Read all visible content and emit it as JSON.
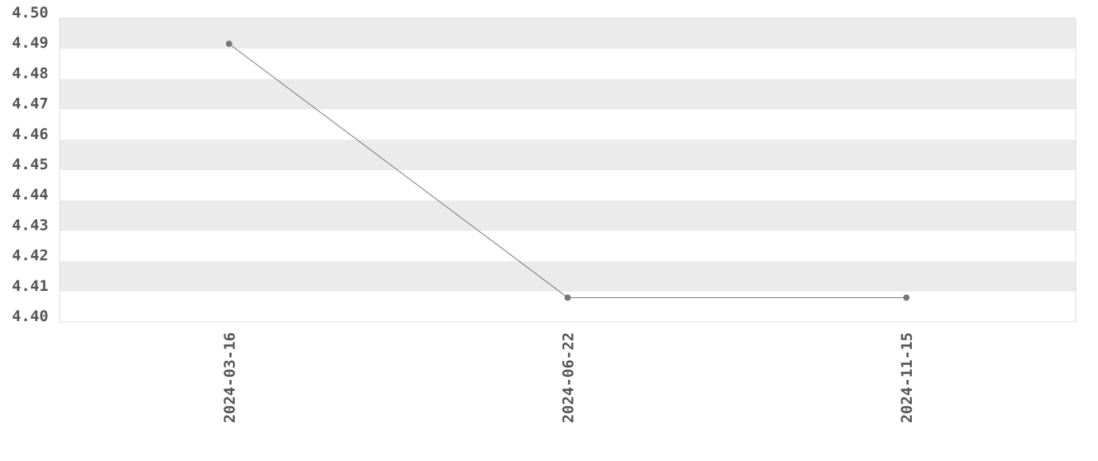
{
  "chart_data": {
    "type": "line",
    "categories": [
      "2024-03-16",
      "2024-06-22",
      "2024-11-15"
    ],
    "series": [
      {
        "values": [
          4.4916,
          4.408,
          4.408
        ]
      }
    ],
    "title": "",
    "xlabel": "",
    "ylabel": "",
    "ylim": [
      4.4,
      4.5
    ],
    "yticks": [
      "4.40",
      "4.41",
      "4.42",
      "4.43",
      "4.44",
      "4.45",
      "4.46",
      "4.47",
      "4.48",
      "4.49",
      "4.50"
    ],
    "grid": "alternating horizontal bands",
    "legend": "none",
    "colors": {
      "line": "#777777",
      "band": "#ebebeb",
      "tick_text": "#555555"
    }
  }
}
